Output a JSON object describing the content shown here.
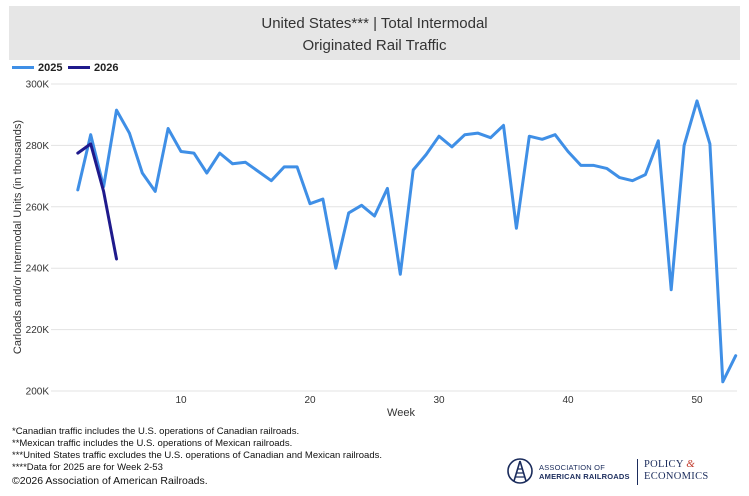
{
  "header": {
    "title_line1": "United States*** | Total Intermodal",
    "title_line2": "Originated Rail Traffic"
  },
  "legend": {
    "items": [
      {
        "label": "2025",
        "color": "#3f8fe6"
      },
      {
        "label": "2026",
        "color": "#1f1a8c"
      }
    ]
  },
  "chart_data": {
    "type": "line",
    "xlabel": "Week",
    "ylabel": "Carloads and/or Intermodal Units (in thousands)",
    "xlim": [
      1,
      53
    ],
    "ylim": [
      200,
      300
    ],
    "x_ticks": [
      10,
      20,
      30,
      40,
      50
    ],
    "y_ticks": [
      200,
      220,
      240,
      260,
      280,
      300
    ],
    "y_tick_labels": [
      "200K",
      "220K",
      "240K",
      "260K",
      "280K",
      "300K"
    ],
    "grid": "horizontal",
    "series": [
      {
        "name": "2025",
        "color": "#3f8fe6",
        "x": [
          2,
          3,
          4,
          5,
          6,
          7,
          8,
          9,
          10,
          11,
          12,
          13,
          14,
          15,
          16,
          17,
          18,
          19,
          20,
          21,
          22,
          23,
          24,
          25,
          26,
          27,
          28,
          29,
          30,
          31,
          32,
          33,
          34,
          35,
          36,
          37,
          38,
          39,
          40,
          41,
          42,
          43,
          44,
          45,
          46,
          47,
          48,
          49,
          50,
          51,
          52,
          53
        ],
        "values": [
          265.5,
          283.5,
          266.5,
          291.5,
          284.0,
          271.0,
          265.0,
          285.5,
          278.0,
          277.5,
          271.0,
          277.5,
          274.0,
          274.5,
          271.5,
          268.5,
          273.0,
          273.0,
          261.0,
          262.5,
          240.0,
          258.0,
          260.5,
          257.0,
          266.0,
          238.0,
          272.0,
          277.0,
          283.0,
          279.5,
          283.5,
          284.0,
          282.5,
          286.5,
          253.0,
          283.0,
          282.0,
          283.5,
          278.0,
          273.5,
          273.5,
          272.5,
          269.5,
          268.5,
          270.5,
          281.5,
          233.0,
          280.0,
          294.5,
          280.5,
          203.0,
          211.5
        ]
      },
      {
        "name": "2026",
        "color": "#1f1a8c",
        "x": [
          2,
          3,
          4,
          5
        ],
        "values": [
          277.5,
          280.5,
          265.0,
          243.0
        ]
      }
    ]
  },
  "footnotes": [
    "*Canadian traffic includes the U.S. operations of Canadian railroads.",
    "**Mexican traffic includes the U.S. operations of Mexican railroads.",
    "***United States traffic excludes the U.S. operations of Canadian and Mexican railroads.",
    "****Data for 2025 are for Week 2-53"
  ],
  "copyright": "©2026 Association of American Railroads.",
  "logos": {
    "aar_line1": "ASSOCIATION OF",
    "aar_line2": "AMERICAN RAILROADS",
    "pe_line1_a": "POLICY",
    "pe_amp": "&",
    "pe_line2": "ECONOMICS"
  }
}
